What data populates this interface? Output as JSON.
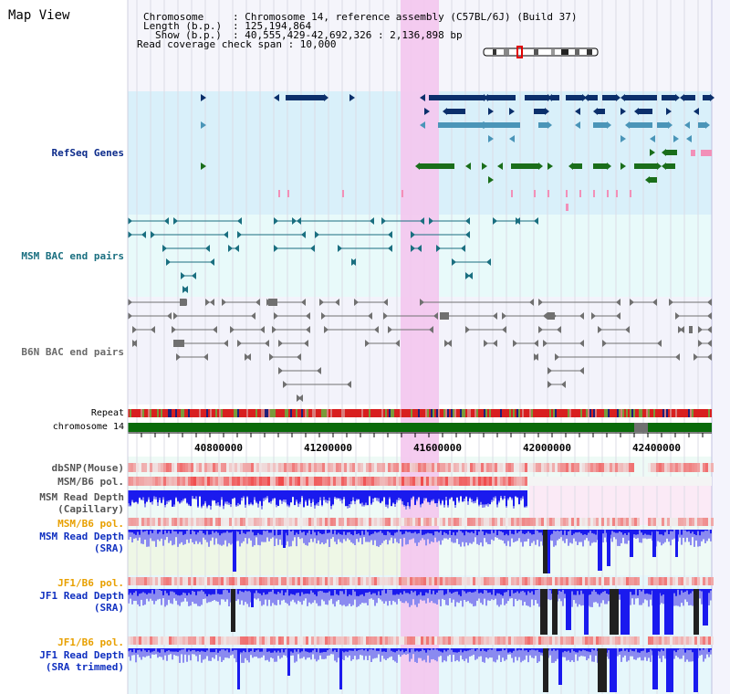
{
  "title": "Map View",
  "info": {
    "chromosome_key": "Chromosome",
    "chromosome_val": ": Chromosome 14, reference assembly (C57BL/6J) (Build 37)",
    "length_key": "Length (b.p.)",
    "length_val": ": 125,194,864",
    "show_key": "Show (b.p.)",
    "show_val": ": 40,555,429-42,692,326 : 2,136,898 bp",
    "coverage_line": "Read coverage check span : 10,000"
  },
  "tracks": {
    "refseq": "RefSeq Genes",
    "msm_bac": "MSM BAC end pairs",
    "b6n_bac": "B6N BAC end pairs",
    "repeat": "Repeat",
    "chromosome": "chromosome 14",
    "dbsnp": "dbSNP(Mouse)",
    "msm_pol": "MSM/B6 pol.",
    "msm_depth_cap_1": "MSM Read Depth",
    "msm_depth_cap_2": "(Capillary)",
    "msm_pol2": "MSM/B6 pol.",
    "msm_sra_1": "MSM Read Depth",
    "msm_sra_2": "(SRA)",
    "jf1_pol": "JF1/B6 pol.",
    "jf1_sra_1": "JF1 Read Depth",
    "jf1_sra_2": "(SRA)",
    "jf1_pol2": "JF1/B6 pol.",
    "jf1_trim_1": "JF1 Read Depth",
    "jf1_trim_2": "(SRA trimmed)"
  },
  "axis": {
    "ticks": [
      "40800000",
      "41200000",
      "41600000",
      "42000000",
      "42400000"
    ]
  },
  "colors": {
    "refseq_bg": "#d9f0fa",
    "refseq_gene": "#0b2f6b",
    "refseq_gene2": "#4a95b8",
    "refseq_gene3": "#1a6e1a",
    "bac_msm": "#1a6f80",
    "bac_b6n": "#707070",
    "highlight": "#f4c6ee",
    "chromosome": "#0a6b0a",
    "depth_blue": "#1a1aee",
    "depth_light": "#8a8af0",
    "pol_red": "#e84040"
  }
}
